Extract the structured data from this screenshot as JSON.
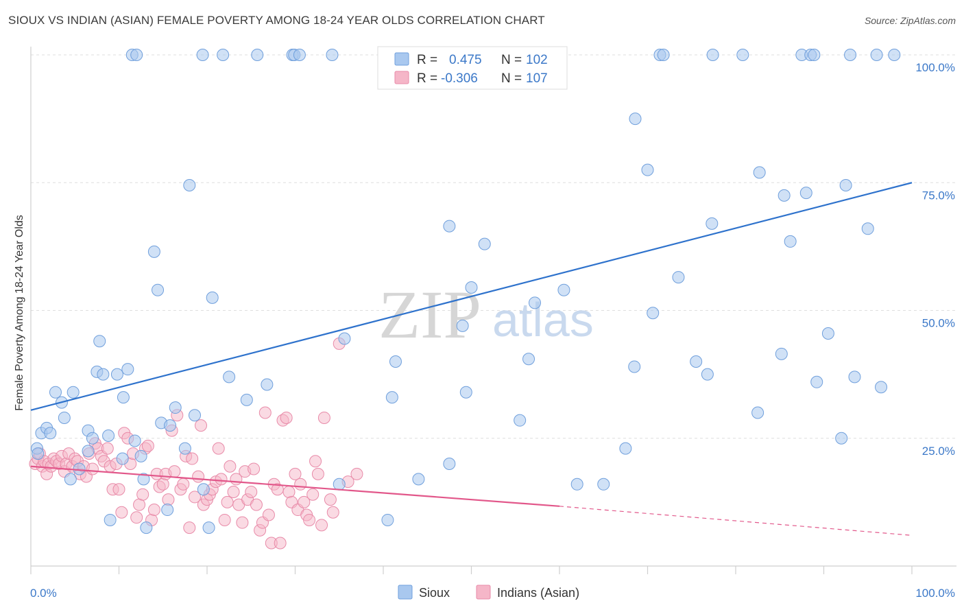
{
  "title": "SIOUX VS INDIAN (ASIAN) FEMALE POVERTY AMONG 18-24 YEAR OLDS CORRELATION CHART",
  "source": "Source: ZipAtlas.com",
  "watermark": {
    "zip": "ZIP",
    "atlas": "atlas"
  },
  "colors": {
    "sioux_fill": "#a9c8ef",
    "sioux_stroke": "#6f9fdc",
    "sioux_line": "#2e72cc",
    "indian_fill": "#f5b6c8",
    "indian_stroke": "#e88aa8",
    "indian_line": "#e2578a",
    "label_blue": "#3b78c8"
  },
  "legend": {
    "r_label": "R =",
    "n_label": "N =",
    "sioux": {
      "r": "0.475",
      "n": "102"
    },
    "indian": {
      "r": "-0.306",
      "n": "107"
    }
  },
  "chart_data": {
    "type": "scatter",
    "title": "SIOUX VS INDIAN (ASIAN) FEMALE POVERTY AMONG 18-24 YEAR OLDS CORRELATION CHART",
    "xlabel": "",
    "ylabel": "Female Poverty Among 18-24 Year Olds",
    "xlim": [
      0,
      100
    ],
    "ylim": [
      0,
      100
    ],
    "x_tick_labels": [
      "0.0%",
      "100.0%"
    ],
    "y_tick_labels": [
      {
        "value": 25,
        "label": "25.0%"
      },
      {
        "value": 50,
        "label": "50.0%"
      },
      {
        "value": 75,
        "label": "75.0%"
      },
      {
        "value": 100,
        "label": "100.0%"
      }
    ],
    "grid": true,
    "legend_position": "top-center",
    "series": [
      {
        "name": "Sioux",
        "r": 0.475,
        "n": 102,
        "trend": {
          "x": [
            0,
            100
          ],
          "y": [
            30.5,
            75.0
          ]
        },
        "points": [
          [
            0.7,
            23.0
          ],
          [
            0.8,
            22.0
          ],
          [
            1.2,
            26.0
          ],
          [
            1.8,
            27.0
          ],
          [
            2.2,
            26.0
          ],
          [
            2.8,
            34.0
          ],
          [
            3.5,
            32.0
          ],
          [
            3.8,
            29.0
          ],
          [
            4.5,
            17.0
          ],
          [
            4.8,
            34.0
          ],
          [
            5.5,
            19.0
          ],
          [
            6.5,
            22.5
          ],
          [
            6.5,
            26.5
          ],
          [
            7.0,
            25.0
          ],
          [
            7.5,
            38.0
          ],
          [
            7.8,
            44.0
          ],
          [
            8.2,
            37.5
          ],
          [
            8.8,
            25.5
          ],
          [
            9.0,
            9.0
          ],
          [
            9.8,
            37.5
          ],
          [
            10.4,
            21.0
          ],
          [
            10.5,
            33.0
          ],
          [
            11.0,
            38.5
          ],
          [
            11.8,
            24.5
          ],
          [
            12.5,
            21.5
          ],
          [
            12.8,
            17.0
          ],
          [
            13.1,
            7.5
          ],
          [
            14.0,
            61.5
          ],
          [
            14.4,
            54.0
          ],
          [
            14.8,
            28.0
          ],
          [
            15.5,
            11.0
          ],
          [
            15.8,
            27.5
          ],
          [
            16.4,
            31.0
          ],
          [
            17.5,
            23.0
          ],
          [
            18.0,
            74.5
          ],
          [
            18.6,
            29.5
          ],
          [
            19.5,
            100.0
          ],
          [
            19.6,
            15.0
          ],
          [
            20.2,
            7.5
          ],
          [
            20.6,
            52.5
          ],
          [
            21.8,
            100.0
          ],
          [
            22.5,
            37.0
          ],
          [
            24.5,
            32.5
          ],
          [
            25.7,
            100.0
          ],
          [
            26.8,
            35.5
          ],
          [
            29.7,
            100.0
          ],
          [
            29.9,
            100.0
          ],
          [
            30.5,
            100.0
          ],
          [
            34.2,
            100.0
          ],
          [
            35.0,
            16.0
          ],
          [
            35.6,
            44.5
          ],
          [
            40.5,
            9.0
          ],
          [
            41.0,
            33.0
          ],
          [
            41.4,
            40.0
          ],
          [
            44.0,
            17.0
          ],
          [
            45.7,
            100.0
          ],
          [
            47.5,
            20.0
          ],
          [
            47.5,
            66.5
          ],
          [
            49.0,
            47.0
          ],
          [
            49.4,
            34.0
          ],
          [
            50.0,
            54.5
          ],
          [
            51.5,
            63.0
          ],
          [
            55.5,
            28.5
          ],
          [
            56.5,
            40.5
          ],
          [
            57.2,
            51.5
          ],
          [
            60.5,
            54.0
          ],
          [
            62.0,
            16.0
          ],
          [
            65.0,
            16.0
          ],
          [
            67.5,
            23.0
          ],
          [
            68.5,
            39.0
          ],
          [
            68.6,
            87.5
          ],
          [
            70.0,
            77.5
          ],
          [
            70.6,
            49.5
          ],
          [
            71.4,
            100.0
          ],
          [
            71.8,
            100.0
          ],
          [
            73.5,
            56.5
          ],
          [
            75.5,
            40.0
          ],
          [
            76.8,
            37.5
          ],
          [
            77.3,
            67.0
          ],
          [
            77.4,
            100.0
          ],
          [
            80.8,
            100.0
          ],
          [
            82.5,
            30.0
          ],
          [
            82.7,
            77.0
          ],
          [
            85.2,
            41.5
          ],
          [
            85.5,
            72.5
          ],
          [
            86.2,
            63.5
          ],
          [
            87.5,
            100.0
          ],
          [
            88.0,
            73.0
          ],
          [
            88.5,
            100.0
          ],
          [
            88.9,
            100.0
          ],
          [
            89.2,
            36.0
          ],
          [
            90.5,
            45.5
          ],
          [
            92.0,
            25.0
          ],
          [
            92.5,
            74.5
          ],
          [
            93.0,
            100.0
          ],
          [
            93.5,
            37.0
          ],
          [
            95.0,
            66.0
          ],
          [
            96.0,
            100.0
          ],
          [
            96.5,
            35.0
          ],
          [
            98.0,
            100.0
          ],
          [
            11.5,
            100.0
          ],
          [
            12.0,
            100.0
          ]
        ]
      },
      {
        "name": "Indians (Asian)",
        "r": -0.306,
        "n": 107,
        "trend_solid": {
          "x": [
            0,
            60
          ],
          "y": [
            19.5,
            11.7
          ]
        },
        "trend_dashed": {
          "x": [
            60,
            100
          ],
          "y": [
            11.7,
            6.0
          ]
        },
        "points": [
          [
            0.5,
            20.0
          ],
          [
            0.8,
            21.0
          ],
          [
            1.0,
            22.0
          ],
          [
            1.3,
            19.5
          ],
          [
            1.5,
            20.5
          ],
          [
            1.8,
            18.0
          ],
          [
            2.0,
            20.0
          ],
          [
            2.3,
            19.5
          ],
          [
            2.6,
            21.0
          ],
          [
            2.9,
            20.5
          ],
          [
            3.2,
            20.0
          ],
          [
            3.5,
            21.5
          ],
          [
            3.8,
            18.5
          ],
          [
            4.0,
            20.0
          ],
          [
            4.3,
            22.0
          ],
          [
            4.7,
            19.5
          ],
          [
            5.0,
            21.0
          ],
          [
            5.3,
            20.5
          ],
          [
            5.6,
            18.0
          ],
          [
            6.0,
            19.5
          ],
          [
            6.3,
            17.5
          ],
          [
            6.6,
            22.0
          ],
          [
            7.0,
            19.0
          ],
          [
            7.3,
            24.0
          ],
          [
            7.6,
            23.0
          ],
          [
            8.0,
            21.5
          ],
          [
            8.3,
            20.5
          ],
          [
            8.7,
            23.0
          ],
          [
            9.0,
            19.5
          ],
          [
            9.3,
            15.0
          ],
          [
            9.7,
            20.0
          ],
          [
            10.0,
            15.0
          ],
          [
            10.3,
            10.5
          ],
          [
            10.6,
            26.0
          ],
          [
            11.0,
            25.0
          ],
          [
            11.3,
            20.0
          ],
          [
            11.6,
            22.0
          ],
          [
            12.0,
            9.5
          ],
          [
            12.3,
            12.0
          ],
          [
            12.7,
            14.0
          ],
          [
            13.0,
            23.0
          ],
          [
            13.3,
            23.5
          ],
          [
            13.7,
            9.0
          ],
          [
            14.0,
            11.0
          ],
          [
            14.3,
            18.0
          ],
          [
            14.6,
            15.5
          ],
          [
            15.0,
            16.0
          ],
          [
            15.3,
            18.0
          ],
          [
            15.6,
            13.0
          ],
          [
            16.0,
            26.5
          ],
          [
            16.3,
            18.5
          ],
          [
            16.6,
            29.5
          ],
          [
            17.0,
            15.0
          ],
          [
            17.3,
            16.0
          ],
          [
            17.6,
            21.5
          ],
          [
            18.0,
            7.5
          ],
          [
            18.3,
            21.0
          ],
          [
            18.6,
            13.5
          ],
          [
            19.0,
            17.5
          ],
          [
            19.3,
            27.5
          ],
          [
            19.6,
            12.0
          ],
          [
            20.0,
            13.0
          ],
          [
            20.3,
            14.0
          ],
          [
            20.6,
            15.0
          ],
          [
            21.0,
            16.5
          ],
          [
            21.3,
            23.0
          ],
          [
            21.6,
            17.0
          ],
          [
            22.0,
            9.0
          ],
          [
            22.3,
            12.5
          ],
          [
            22.6,
            19.5
          ],
          [
            23.0,
            14.5
          ],
          [
            23.3,
            17.0
          ],
          [
            23.6,
            12.0
          ],
          [
            24.0,
            8.5
          ],
          [
            24.3,
            18.5
          ],
          [
            24.6,
            13.0
          ],
          [
            25.0,
            14.5
          ],
          [
            25.3,
            19.0
          ],
          [
            25.6,
            12.0
          ],
          [
            26.0,
            7.0
          ],
          [
            26.3,
            8.5
          ],
          [
            26.6,
            30.0
          ],
          [
            27.0,
            10.0
          ],
          [
            27.3,
            4.5
          ],
          [
            27.6,
            16.0
          ],
          [
            28.0,
            15.0
          ],
          [
            28.3,
            4.5
          ],
          [
            28.6,
            28.5
          ],
          [
            29.0,
            29.0
          ],
          [
            29.3,
            14.5
          ],
          [
            29.6,
            12.5
          ],
          [
            30.0,
            18.0
          ],
          [
            30.3,
            11.0
          ],
          [
            30.6,
            16.0
          ],
          [
            31.0,
            12.5
          ],
          [
            31.3,
            10.0
          ],
          [
            31.6,
            9.0
          ],
          [
            32.0,
            14.0
          ],
          [
            32.3,
            20.5
          ],
          [
            32.6,
            18.0
          ],
          [
            33.0,
            8.0
          ],
          [
            33.3,
            29.0
          ],
          [
            34.0,
            13.0
          ],
          [
            34.3,
            10.5
          ],
          [
            35.0,
            43.5
          ],
          [
            36.0,
            16.5
          ],
          [
            37.0,
            18.0
          ]
        ]
      }
    ]
  },
  "bottom_legend": {
    "sioux": "Sioux",
    "indian": "Indians (Asian)"
  }
}
